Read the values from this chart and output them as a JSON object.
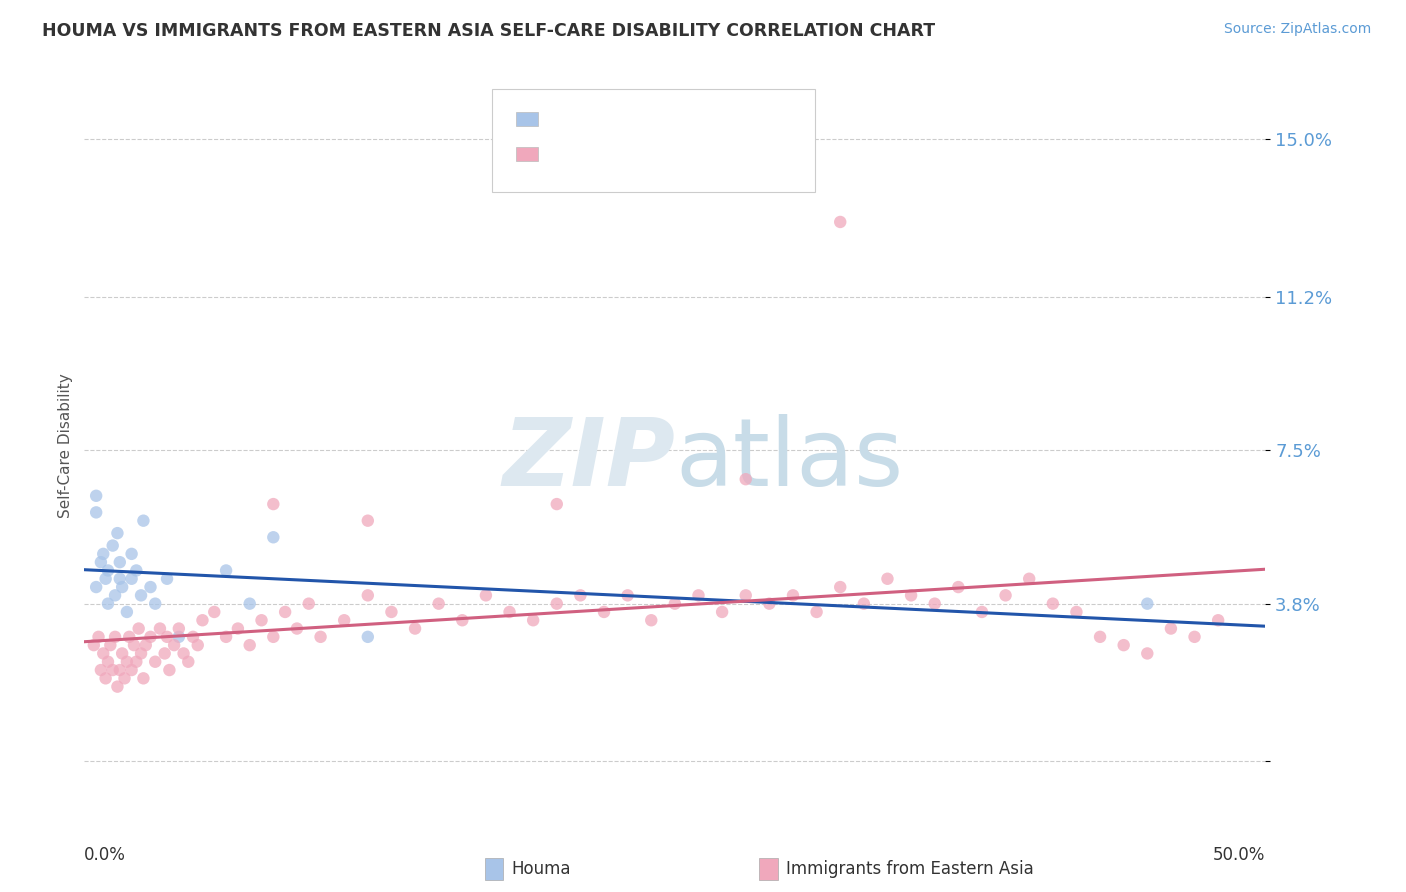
{
  "title": "HOUMA VS IMMIGRANTS FROM EASTERN ASIA SELF-CARE DISABILITY CORRELATION CHART",
  "source": "Source: ZipAtlas.com",
  "ylabel": "Self-Care Disability",
  "yticks": [
    0.0,
    0.038,
    0.075,
    0.112,
    0.15
  ],
  "ytick_labels": [
    "",
    "3.8%",
    "7.5%",
    "11.2%",
    "15.0%"
  ],
  "xlim": [
    0.0,
    0.5
  ],
  "ylim": [
    -0.01,
    0.162
  ],
  "houma_color": "#a8c4e8",
  "eastern_asia_color": "#f0a8bc",
  "line_color_houma": "#2255aa",
  "line_color_eastern": "#d06080",
  "houma_scatter": [
    [
      0.005,
      0.042
    ],
    [
      0.007,
      0.048
    ],
    [
      0.008,
      0.05
    ],
    [
      0.009,
      0.044
    ],
    [
      0.01,
      0.038
    ],
    [
      0.01,
      0.046
    ],
    [
      0.012,
      0.052
    ],
    [
      0.013,
      0.04
    ],
    [
      0.014,
      0.055
    ],
    [
      0.015,
      0.044
    ],
    [
      0.015,
      0.048
    ],
    [
      0.016,
      0.042
    ],
    [
      0.018,
      0.036
    ],
    [
      0.02,
      0.05
    ],
    [
      0.02,
      0.044
    ],
    [
      0.022,
      0.046
    ],
    [
      0.024,
      0.04
    ],
    [
      0.025,
      0.058
    ],
    [
      0.028,
      0.042
    ],
    [
      0.03,
      0.038
    ],
    [
      0.035,
      0.044
    ],
    [
      0.04,
      0.03
    ],
    [
      0.06,
      0.046
    ],
    [
      0.07,
      0.038
    ],
    [
      0.08,
      0.054
    ],
    [
      0.005,
      0.06
    ],
    [
      0.005,
      0.064
    ],
    [
      0.12,
      0.03
    ],
    [
      0.45,
      0.038
    ]
  ],
  "eastern_asia_scatter": [
    [
      0.004,
      0.028
    ],
    [
      0.006,
      0.03
    ],
    [
      0.007,
      0.022
    ],
    [
      0.008,
      0.026
    ],
    [
      0.009,
      0.02
    ],
    [
      0.01,
      0.024
    ],
    [
      0.011,
      0.028
    ],
    [
      0.012,
      0.022
    ],
    [
      0.013,
      0.03
    ],
    [
      0.014,
      0.018
    ],
    [
      0.015,
      0.022
    ],
    [
      0.016,
      0.026
    ],
    [
      0.017,
      0.02
    ],
    [
      0.018,
      0.024
    ],
    [
      0.019,
      0.03
    ],
    [
      0.02,
      0.022
    ],
    [
      0.021,
      0.028
    ],
    [
      0.022,
      0.024
    ],
    [
      0.023,
      0.032
    ],
    [
      0.024,
      0.026
    ],
    [
      0.025,
      0.02
    ],
    [
      0.026,
      0.028
    ],
    [
      0.028,
      0.03
    ],
    [
      0.03,
      0.024
    ],
    [
      0.032,
      0.032
    ],
    [
      0.034,
      0.026
    ],
    [
      0.035,
      0.03
    ],
    [
      0.036,
      0.022
    ],
    [
      0.038,
      0.028
    ],
    [
      0.04,
      0.032
    ],
    [
      0.042,
      0.026
    ],
    [
      0.044,
      0.024
    ],
    [
      0.046,
      0.03
    ],
    [
      0.048,
      0.028
    ],
    [
      0.05,
      0.034
    ],
    [
      0.055,
      0.036
    ],
    [
      0.06,
      0.03
    ],
    [
      0.065,
      0.032
    ],
    [
      0.07,
      0.028
    ],
    [
      0.075,
      0.034
    ],
    [
      0.08,
      0.03
    ],
    [
      0.085,
      0.036
    ],
    [
      0.09,
      0.032
    ],
    [
      0.095,
      0.038
    ],
    [
      0.1,
      0.03
    ],
    [
      0.11,
      0.034
    ],
    [
      0.12,
      0.04
    ],
    [
      0.13,
      0.036
    ],
    [
      0.14,
      0.032
    ],
    [
      0.15,
      0.038
    ],
    [
      0.16,
      0.034
    ],
    [
      0.17,
      0.04
    ],
    [
      0.18,
      0.036
    ],
    [
      0.19,
      0.034
    ],
    [
      0.2,
      0.038
    ],
    [
      0.21,
      0.04
    ],
    [
      0.22,
      0.036
    ],
    [
      0.23,
      0.04
    ],
    [
      0.24,
      0.034
    ],
    [
      0.25,
      0.038
    ],
    [
      0.26,
      0.04
    ],
    [
      0.27,
      0.036
    ],
    [
      0.28,
      0.04
    ],
    [
      0.29,
      0.038
    ],
    [
      0.3,
      0.04
    ],
    [
      0.31,
      0.036
    ],
    [
      0.32,
      0.042
    ],
    [
      0.33,
      0.038
    ],
    [
      0.34,
      0.044
    ],
    [
      0.35,
      0.04
    ],
    [
      0.36,
      0.038
    ],
    [
      0.37,
      0.042
    ],
    [
      0.38,
      0.036
    ],
    [
      0.39,
      0.04
    ],
    [
      0.4,
      0.044
    ],
    [
      0.41,
      0.038
    ],
    [
      0.42,
      0.036
    ],
    [
      0.43,
      0.03
    ],
    [
      0.44,
      0.028
    ],
    [
      0.45,
      0.026
    ],
    [
      0.46,
      0.032
    ],
    [
      0.47,
      0.03
    ],
    [
      0.48,
      0.034
    ],
    [
      0.32,
      0.13
    ],
    [
      0.08,
      0.062
    ],
    [
      0.12,
      0.058
    ],
    [
      0.2,
      0.062
    ],
    [
      0.28,
      0.068
    ]
  ]
}
